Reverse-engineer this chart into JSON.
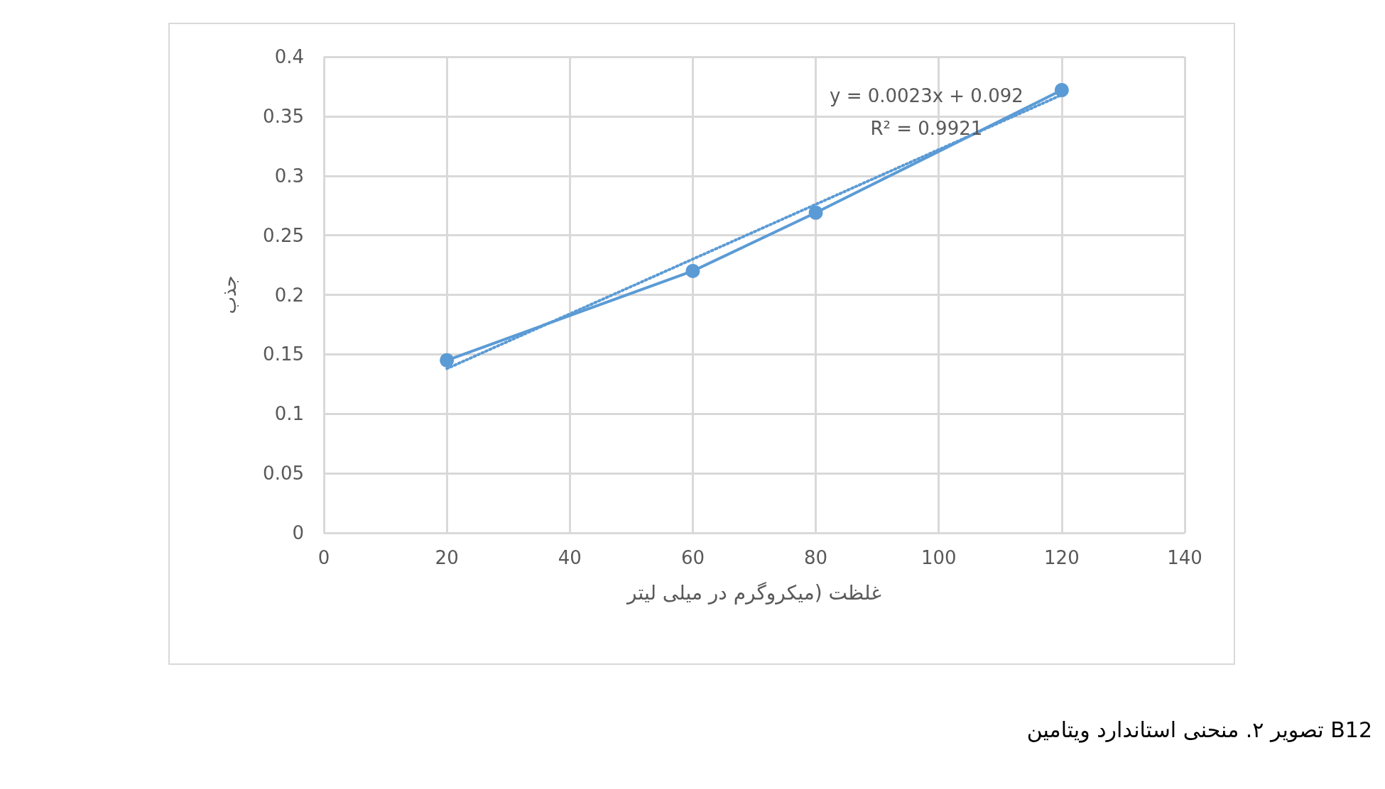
{
  "chart_data": {
    "type": "line",
    "xlabel": "غلظت (میکروگرم در میلی لیتر",
    "ylabel": "جذب",
    "xlim": [
      0,
      140
    ],
    "xticks": [
      0,
      20,
      40,
      60,
      80,
      100,
      120,
      140
    ],
    "ylim": [
      0,
      0.4
    ],
    "yticks": [
      0,
      0.05,
      0.1,
      0.15,
      0.2,
      0.25,
      0.3,
      0.35,
      0.4
    ],
    "grid": true,
    "series": [
      {
        "color": "#5b9bd5",
        "x": [
          20,
          60,
          80,
          120
        ],
        "values": [
          0.145,
          0.22,
          0.269,
          0.372
        ],
        "marker": "circle",
        "line_style": "solid"
      },
      {
        "color": "#5b9bd5",
        "x": [
          20,
          120
        ],
        "values": [
          0.138,
          0.368
        ],
        "marker": "none",
        "line_style": "dotted"
      }
    ],
    "annotations": [
      "y = 0.0023x + 0.092",
      "R² = 0.9921",
      "تصویر ۲. منحنی استاندارد ویتامین B12"
    ]
  }
}
